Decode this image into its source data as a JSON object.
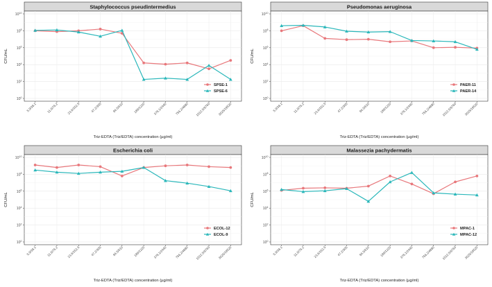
{
  "chart_data": [
    {
      "type": "line",
      "title": "Staphylococcus pseudintermedius",
      "xlabel": "Triz-EDTA (Triz/EDTA) concentration (µg/ml)",
      "ylabel": "CFU/mL",
      "y_scale": "log10",
      "ylim_exp": [
        0,
        10
      ],
      "y_ticks": [
        "10^0",
        "10^2",
        "10^4",
        "10^6",
        "10^8",
        "10^10"
      ],
      "categories": [
        "5.9/38.1",
        "11.8/76.2",
        "23.6/152.5",
        "47.2/305",
        "94.5/610",
        "189/1220",
        "378.1/2440",
        "756.2/4880",
        "1512.5/9760",
        "3025/19520"
      ],
      "series": [
        {
          "name": "SPSE-1",
          "color": "#e8777b",
          "marker": "circle",
          "log10_values": [
            8.0,
            7.9,
            8.0,
            8.2,
            7.7,
            4.2,
            4.05,
            4.2,
            3.5,
            4.5
          ]
        },
        {
          "name": "SPSE-6",
          "color": "#2ab7ba",
          "marker": "triangle",
          "log10_values": [
            8.05,
            8.1,
            7.85,
            7.35,
            8.05,
            2.25,
            2.4,
            2.25,
            3.9,
            2.25
          ]
        }
      ],
      "legend_position": "bottom-right"
    },
    {
      "type": "line",
      "title": "Pseudomonas aeruginosa",
      "xlabel": "Triz-EDTA (Triz/EDTA) concentration (µg/ml)",
      "ylabel": "CFU/mL",
      "y_scale": "log10",
      "ylim_exp": [
        0,
        10
      ],
      "y_ticks": [
        "10^0",
        "10^2",
        "10^4",
        "10^6",
        "10^8",
        "10^10"
      ],
      "categories": [
        "5.9/38.1",
        "11.8/76.2",
        "23.6/152.5",
        "47.2/305",
        "94.5/610",
        "189/1220",
        "378.1/2440",
        "756.2/4880",
        "1512.5/9760",
        "3025/19520"
      ],
      "series": [
        {
          "name": "PAER-11",
          "color": "#e8777b",
          "marker": "circle",
          "log10_values": [
            8.0,
            8.6,
            7.1,
            6.95,
            7.0,
            6.7,
            6.8,
            6.0,
            6.05,
            5.95
          ]
        },
        {
          "name": "PAER-14",
          "color": "#2ab7ba",
          "marker": "triangle",
          "log10_values": [
            8.6,
            8.65,
            8.45,
            7.95,
            7.85,
            7.9,
            6.85,
            6.8,
            6.7,
            5.8
          ]
        }
      ],
      "legend_position": "bottom-right"
    },
    {
      "type": "line",
      "title": "Escherichia coli",
      "xlabel": "Triz-EDTA (Triz/EDTA) concentration (µg/ml)",
      "ylabel": "CFU/mL",
      "y_scale": "log10",
      "ylim_exp": [
        0,
        10
      ],
      "y_ticks": [
        "10^0",
        "10^2",
        "10^4",
        "10^6",
        "10^8",
        "10^10"
      ],
      "categories": [
        "5.9/38.1",
        "11.8/76.2",
        "23.6/152.5",
        "47.2/305",
        "94.5/610",
        "189/1220",
        "378.1/2440",
        "756.2/4880",
        "1512.5/9760",
        "3025/19520"
      ],
      "series": [
        {
          "name": "ECOL-12",
          "color": "#e8777b",
          "marker": "circle",
          "log10_values": [
            9.1,
            8.8,
            9.1,
            8.9,
            7.8,
            8.8,
            9.0,
            9.1,
            8.9,
            8.8
          ]
        },
        {
          "name": "ECOL-9",
          "color": "#2ab7ba",
          "marker": "triangle",
          "log10_values": [
            8.5,
            8.25,
            8.1,
            8.25,
            8.35,
            8.8,
            7.25,
            6.95,
            6.55,
            6.05
          ]
        }
      ],
      "legend_position": "bottom-right"
    },
    {
      "type": "line",
      "title": "Malassezia pachydermatis",
      "xlabel": "Triz-EDTA (Triz/EDTA) concentration (µg/ml)",
      "ylabel": "CFU/mL",
      "y_scale": "log10",
      "ylim_exp": [
        0,
        10
      ],
      "y_ticks": [
        "10^0",
        "10^2",
        "10^4",
        "10^6",
        "10^8",
        "10^10"
      ],
      "categories": [
        "5.9/38.1",
        "11.8/76.2",
        "23.6/152.5",
        "47.2/305",
        "94.5/610",
        "189/1220",
        "378.1/2440",
        "756.2/4880",
        "1512.5/9760",
        "3025/19520"
      ],
      "series": [
        {
          "name": "MPAC-1",
          "color": "#e8777b",
          "marker": "circle",
          "log10_values": [
            6.1,
            6.35,
            6.4,
            6.35,
            6.6,
            7.8,
            6.85,
            5.7,
            7.1,
            7.8
          ]
        },
        {
          "name": "MPAC-12",
          "color": "#2ab7ba",
          "marker": "triangle",
          "log10_values": [
            6.2,
            5.95,
            6.05,
            6.3,
            4.8,
            7.1,
            8.2,
            5.8,
            5.65,
            5.55
          ]
        }
      ],
      "legend_position": "bottom-right"
    }
  ]
}
